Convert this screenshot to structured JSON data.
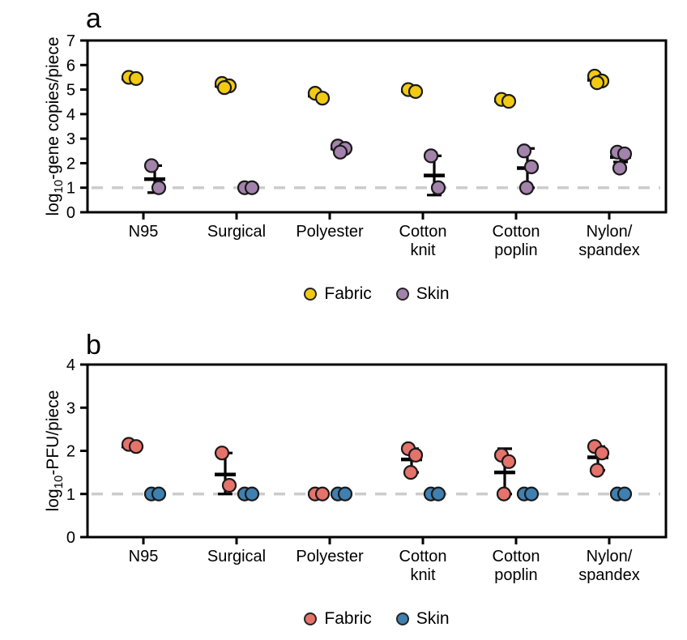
{
  "chart_data": [
    {
      "id": "a",
      "panel_label": "a",
      "type": "scatter",
      "y_title": {
        "prefix": "log",
        "sub": "10",
        "suffix": "-gene copies/piece"
      },
      "ylim": [
        0,
        7
      ],
      "yticks": [
        0,
        1,
        2,
        3,
        4,
        5,
        6,
        7
      ],
      "lod": 1,
      "lod_line_color": "#cccccc",
      "grid": false,
      "legend_position": "bottom",
      "categories": [
        [
          "N95"
        ],
        [
          "Surgical"
        ],
        [
          "Polyester"
        ],
        [
          "Cotton",
          "knit"
        ],
        [
          "Cotton",
          "poplin"
        ],
        [
          "Nylon/",
          "spandex"
        ]
      ],
      "series": [
        {
          "name": "Fabric",
          "color": "#F2CA12",
          "offset": -14,
          "groups": [
            {
              "values": [
                5.5,
                5.45
              ],
              "mean": 5.45
            },
            {
              "values": [
                5.25,
                5.15,
                5.08
              ],
              "mean": 5.15
            },
            {
              "values": [
                4.85,
                4.65
              ],
              "mean": 4.75
            },
            {
              "values": [
                5.0,
                4.92
              ],
              "mean": 4.95
            },
            {
              "values": [
                4.6,
                4.52
              ],
              "mean": 4.55
            },
            {
              "values": [
                5.55,
                5.35,
                5.28
              ],
              "mean": 5.4
            }
          ]
        },
        {
          "name": "Skin",
          "color": "#A383AC",
          "offset": 14,
          "groups": [
            {
              "values": [
                1.9,
                1.0
              ],
              "mean": 1.35,
              "err": [
                0.8,
                1.9
              ]
            },
            {
              "values": [
                1.0,
                1.0
              ],
              "mean": 1.0
            },
            {
              "values": [
                2.7,
                2.6,
                2.45
              ],
              "mean": 2.6,
              "err": [
                2.45,
                2.75
              ]
            },
            {
              "values": [
                2.3,
                1.0
              ],
              "mean": 1.5,
              "err": [
                0.7,
                2.3
              ]
            },
            {
              "values": [
                2.5,
                1.85,
                1.0
              ],
              "mean": 1.8,
              "err": [
                1.0,
                2.6
              ]
            },
            {
              "values": [
                2.45,
                2.38,
                1.8
              ],
              "mean": 2.25,
              "err": [
                2.05,
                2.55
              ]
            }
          ]
        }
      ]
    },
    {
      "id": "b",
      "panel_label": "b",
      "type": "scatter",
      "y_title": {
        "prefix": "log",
        "sub": "10",
        "suffix": "-PFU/piece"
      },
      "ylim": [
        0,
        4
      ],
      "yticks": [
        0,
        1,
        2,
        3,
        4
      ],
      "lod": 1,
      "lod_line_color": "#cccccc",
      "grid": false,
      "legend_position": "bottom",
      "categories": [
        [
          "N95"
        ],
        [
          "Surgical"
        ],
        [
          "Polyester"
        ],
        [
          "Cotton",
          "knit"
        ],
        [
          "Cotton",
          "poplin"
        ],
        [
          "Nylon/",
          "spandex"
        ]
      ],
      "series": [
        {
          "name": "Fabric",
          "color": "#E5736C",
          "offset": -14,
          "groups": [
            {
              "values": [
                2.15,
                2.1
              ],
              "mean": 2.1
            },
            {
              "values": [
                1.95,
                1.2
              ],
              "mean": 1.45,
              "err": [
                1.0,
                1.95
              ]
            },
            {
              "values": [
                1.0,
                1.0
              ],
              "mean": 1.0
            },
            {
              "values": [
                2.05,
                1.9,
                1.5
              ],
              "mean": 1.8,
              "err": [
                1.5,
                2.05
              ]
            },
            {
              "values": [
                1.9,
                1.75,
                1.0
              ],
              "mean": 1.5,
              "err": [
                1.0,
                2.05
              ]
            },
            {
              "values": [
                2.1,
                1.95,
                1.55
              ],
              "mean": 1.85,
              "err": [
                1.55,
                2.1
              ]
            }
          ]
        },
        {
          "name": "Skin",
          "color": "#3F80B0",
          "offset": 14,
          "groups": [
            {
              "values": [
                1.0,
                1.0
              ],
              "mean": 1.0
            },
            {
              "values": [
                1.0,
                1.0
              ],
              "mean": 1.0
            },
            {
              "values": [
                1.0,
                1.0
              ],
              "mean": 1.0
            },
            {
              "values": [
                1.0,
                1.0
              ],
              "mean": 1.0
            },
            {
              "values": [
                1.0,
                1.0
              ],
              "mean": 1.0
            },
            {
              "values": [
                1.0,
                1.0
              ],
              "mean": 1.0
            }
          ]
        }
      ]
    }
  ]
}
